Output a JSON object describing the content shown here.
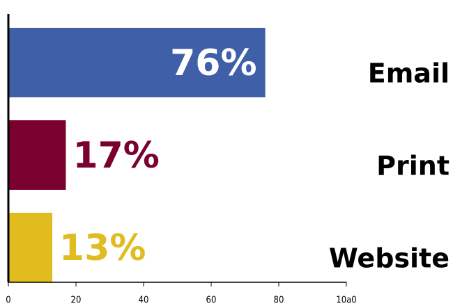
{
  "chart_data": {
    "type": "bar",
    "orientation": "horizontal",
    "categories": [
      "Email",
      "Print",
      "Website"
    ],
    "series": [
      {
        "values": [
          76,
          17,
          13
        ],
        "value_labels": [
          "76%",
          "17%",
          "13%"
        ],
        "colors": [
          "#3f5fa8",
          "#7a0030",
          "#e0bc1f"
        ]
      }
    ],
    "xlim": [
      0,
      100
    ],
    "xticks": [
      0,
      20,
      40,
      60,
      80,
      {
        "value": 100,
        "label": "10a0"
      }
    ]
  }
}
